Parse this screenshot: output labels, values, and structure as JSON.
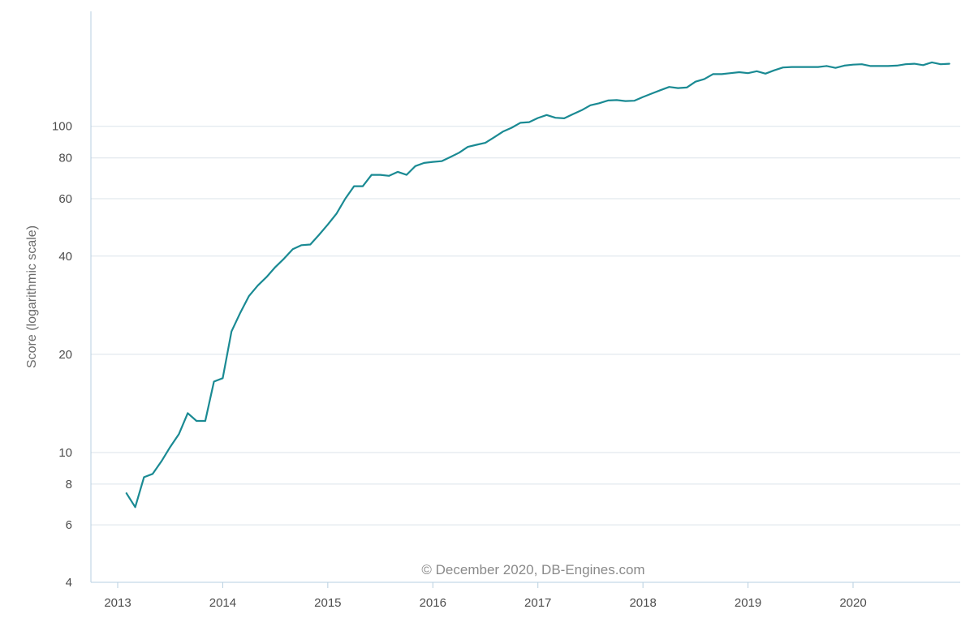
{
  "chart_data": {
    "type": "line",
    "ylabel": "Score (logarithmic scale)",
    "xlabel": "",
    "yscale": "log",
    "ylim": [
      4,
      220
    ],
    "xlim": [
      2013,
      2020.98
    ],
    "grid": "horizontal",
    "credit": "© December 2020, DB-Engines.com",
    "colors": {
      "line": "#1a8a93",
      "grid": "#dbe3ea",
      "axis": "#b7cfe0"
    },
    "yticks": [
      {
        "value": 4,
        "label": "4"
      },
      {
        "value": 6,
        "label": "6"
      },
      {
        "value": 8,
        "label": "8"
      },
      {
        "value": 10,
        "label": "10"
      },
      {
        "value": 20,
        "label": "20"
      },
      {
        "value": 40,
        "label": "40"
      },
      {
        "value": 60,
        "label": "60"
      },
      {
        "value": 80,
        "label": "80"
      },
      {
        "value": 100,
        "label": "100"
      }
    ],
    "xticks": [
      {
        "value": 2013,
        "label": "2013"
      },
      {
        "value": 2014,
        "label": "2014"
      },
      {
        "value": 2015,
        "label": "2015"
      },
      {
        "value": 2016,
        "label": "2016"
      },
      {
        "value": 2017,
        "label": "2017"
      },
      {
        "value": 2018,
        "label": "2018"
      },
      {
        "value": 2019,
        "label": "2019"
      },
      {
        "value": 2020,
        "label": "2020"
      }
    ],
    "series": [
      {
        "x": [
          "2013-02",
          "2013-03",
          "2013-04",
          "2013-05",
          "2013-06",
          "2013-07",
          "2013-08",
          "2013-09",
          "2013-10",
          "2013-11",
          "2013-12",
          "2014-01",
          "2014-02",
          "2014-03",
          "2014-04",
          "2014-05",
          "2014-06",
          "2014-07",
          "2014-08",
          "2014-09",
          "2014-10",
          "2014-11",
          "2014-12",
          "2015-01",
          "2015-02",
          "2015-03",
          "2015-04",
          "2015-05",
          "2015-06",
          "2015-07",
          "2015-08",
          "2015-09",
          "2015-10",
          "2015-11",
          "2015-12",
          "2016-01",
          "2016-02",
          "2016-03",
          "2016-04",
          "2016-05",
          "2016-06",
          "2016-07",
          "2016-08",
          "2016-09",
          "2016-10",
          "2016-11",
          "2016-12",
          "2017-01",
          "2017-02",
          "2017-03",
          "2017-04",
          "2017-05",
          "2017-06",
          "2017-07",
          "2017-08",
          "2017-09",
          "2017-10",
          "2017-11",
          "2017-12",
          "2018-01",
          "2018-02",
          "2018-03",
          "2018-04",
          "2018-05",
          "2018-06",
          "2018-07",
          "2018-08",
          "2018-09",
          "2018-10",
          "2018-11",
          "2018-12",
          "2019-01",
          "2019-02",
          "2019-03",
          "2019-04",
          "2019-05",
          "2019-06",
          "2019-07",
          "2019-08",
          "2019-09",
          "2019-10",
          "2019-11",
          "2019-12",
          "2020-01",
          "2020-02",
          "2020-03",
          "2020-04",
          "2020-05",
          "2020-06",
          "2020-07",
          "2020-08",
          "2020-09",
          "2020-10",
          "2020-11",
          "2020-12"
        ],
        "values": [
          7.5,
          6.8,
          8.4,
          8.6,
          9.4,
          10.4,
          11.4,
          13.2,
          12.5,
          12.5,
          16.5,
          16.9,
          23.5,
          26.8,
          30.2,
          32.5,
          34.5,
          37.0,
          39.3,
          42.0,
          43.2,
          43.4,
          46.5,
          50.0,
          54.0,
          60.0,
          65.5,
          65.5,
          71.0,
          71.0,
          70.5,
          72.5,
          71.0,
          75.5,
          77.2,
          77.8,
          78.2,
          80.5,
          83.0,
          86.5,
          87.8,
          89.0,
          92.5,
          96.3,
          99.0,
          102.5,
          103.0,
          106.0,
          108.3,
          106.2,
          105.8,
          109.0,
          112.0,
          116.0,
          117.7,
          120.0,
          120.3,
          119.5,
          119.8,
          123.0,
          126.0,
          129.0,
          132.0,
          131.0,
          131.5,
          137.0,
          139.5,
          144.5,
          144.5,
          145.5,
          146.5,
          145.5,
          147.5,
          145.0,
          148.5,
          151.5,
          152.0,
          152.0,
          152.0,
          152.0,
          153.0,
          151.0,
          153.5,
          154.5,
          155.0,
          153.0,
          153.0,
          153.0,
          153.5,
          155.0,
          155.5,
          154.0,
          157.0,
          155.0,
          155.5
        ]
      }
    ]
  }
}
